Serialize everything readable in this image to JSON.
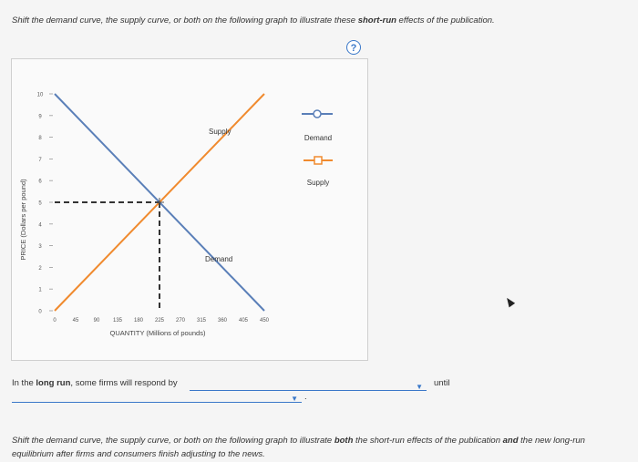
{
  "question": {
    "instruction_prefix": "Shift the demand curve, the supply curve, or both on the following graph to illustrate these ",
    "instruction_bold": "short-run",
    "instruction_suffix": " effects of the publication.",
    "help_symbol": "?"
  },
  "graph": {
    "y_axis_title": "PRICE (Dollars per pound)",
    "x_axis_title": "QUANTITY (Millions of pounds)",
    "y_ticks": [
      "10",
      "9",
      "8",
      "7",
      "6",
      "5",
      "4",
      "3",
      "2",
      "1",
      "0"
    ],
    "x_ticks": [
      "0",
      "45",
      "90",
      "135",
      "180",
      "225",
      "270",
      "315",
      "360",
      "405",
      "450"
    ],
    "supply_label": "Supply",
    "demand_label": "Demand",
    "legend": [
      {
        "label": "Demand",
        "marker": "circle",
        "color": "#5a7fb8"
      },
      {
        "label": "Supply",
        "marker": "square",
        "color": "#f08a2e"
      }
    ],
    "colors": {
      "supply": "#f08a2e",
      "demand": "#5a7fb8",
      "dashed": "#333333"
    }
  },
  "chart_data": {
    "type": "line",
    "xlabel": "QUANTITY (Millions of pounds)",
    "ylabel": "PRICE (Dollars per pound)",
    "xlim": [
      0,
      450
    ],
    "ylim": [
      0,
      10
    ],
    "series": [
      {
        "name": "Demand",
        "x": [
          0,
          450
        ],
        "y": [
          10,
          0
        ]
      },
      {
        "name": "Supply",
        "x": [
          0,
          450
        ],
        "y": [
          0,
          10
        ]
      }
    ],
    "equilibrium": {
      "x": 225,
      "y": 5
    }
  },
  "long_run": {
    "prefix": "In the ",
    "bold": "long run",
    "suffix": ", some firms will respond by",
    "dropdown1_value": "",
    "until_label": "until",
    "dropdown2_value": "",
    "trailing": "."
  },
  "question2": {
    "text_a": "Shift the demand curve, the supply curve, or both on the following graph to illustrate ",
    "bold_a": "both",
    "text_b": " the short-run effects of the publication ",
    "bold_b": "and",
    "text_c": " the new long-run equilibrium after firms and consumers finish adjusting to the news."
  }
}
